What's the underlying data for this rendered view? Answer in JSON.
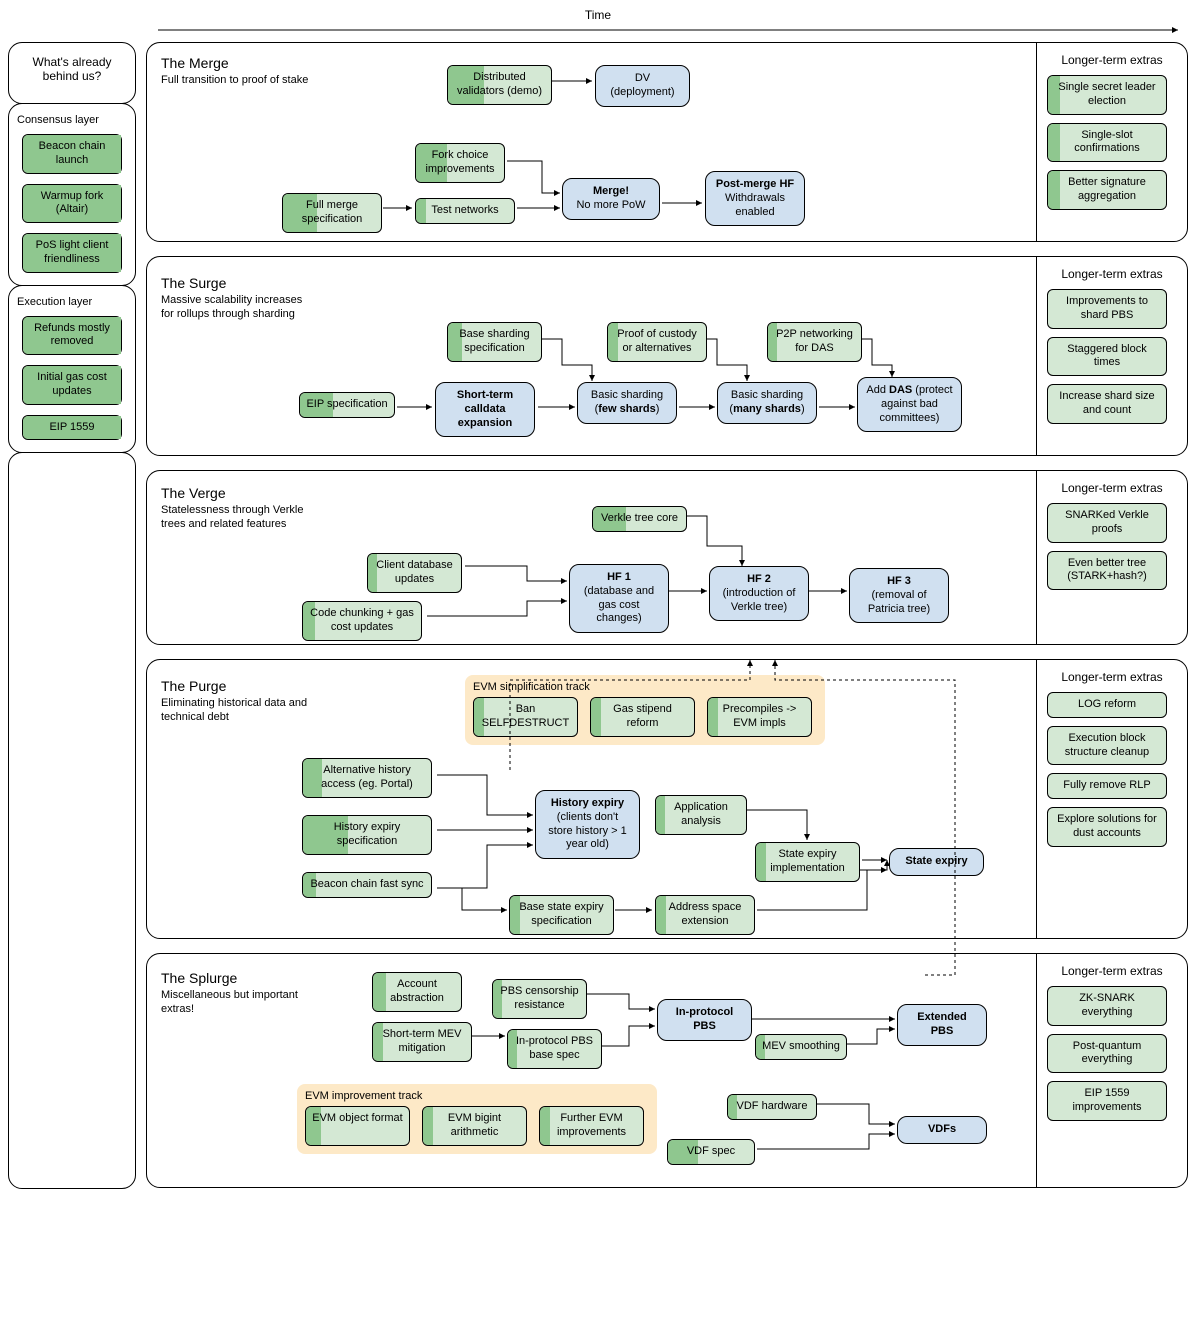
{
  "colors": {
    "green_fill": "#d4e8d4",
    "green_dark": "#8fc78f",
    "blue_fill": "#d0e0f0",
    "yellow_fill": "#fde9c7",
    "border": "#000000",
    "bg": "#ffffff"
  },
  "time_label": "Time",
  "left": {
    "title": "What's already behind us?",
    "consensus_label": "Consensus layer",
    "execution_label": "Execution layer",
    "consensus_items": [
      {
        "label": "Beacon chain launch",
        "progress": 1.0
      },
      {
        "label": "Warmup fork (Altair)",
        "progress": 1.0
      },
      {
        "label": "PoS light client friendliness",
        "progress": 1.0
      }
    ],
    "execution_items": [
      {
        "label": "Refunds mostly removed",
        "progress": 1.0
      },
      {
        "label": "Initial gas cost updates",
        "progress": 1.0
      },
      {
        "label": "EIP 1559",
        "progress": 1.0
      }
    ]
  },
  "merge": {
    "title": "The Merge",
    "sub": "Full transition to proof of stake",
    "nodes": {
      "dv_demo": {
        "label": "Distributed validators (demo)",
        "progress": 0.35
      },
      "dv_deploy": "DV (deployment)",
      "fork_choice": {
        "label": "Fork choice improvements",
        "progress": 0.35
      },
      "full_spec": {
        "label": "Full merge specification",
        "progress": 0.35
      },
      "test_net": {
        "label": "Test networks",
        "progress": 0.1
      },
      "merge_b": "<b>Merge!</b><br>No more PoW",
      "postmerge_b": "<b>Post-merge HF</b><br>Withdrawals enabled"
    },
    "extras_title": "Longer-term extras",
    "extras": [
      {
        "label": "Single secret leader election",
        "progress": 0.1
      },
      {
        "label": "Single-slot confirmations",
        "progress": 0.1
      },
      {
        "label": "Better signature aggregation",
        "progress": 0.1
      }
    ]
  },
  "surge": {
    "title": "The Surge",
    "sub": "Massive scalability increases for rollups through sharding",
    "nodes": {
      "eip_spec": {
        "label": "EIP specification",
        "progress": 0.35
      },
      "base_shard": {
        "label": "Base sharding specification",
        "progress": 0.15
      },
      "proof_custody": {
        "label": "Proof of custody or alternatives",
        "progress": 0.1
      },
      "p2p_das": {
        "label": "P2P networking for DAS",
        "progress": 0.1
      },
      "short_calldata": "<b>Short-term calldata expansion</b>",
      "few_shards": "Basic sharding (<b>few shards</b>)",
      "many_shards": "Basic sharding (<b>many shards</b>)",
      "add_das": "Add <b>DAS</b> (protect against bad committees)"
    },
    "extras_title": "Longer-term extras",
    "extras": [
      {
        "label": "Improvements to shard PBS",
        "progress": 0.0
      },
      {
        "label": "Staggered block times",
        "progress": 0.0
      },
      {
        "label": "Increase shard size and count",
        "progress": 0.0
      }
    ]
  },
  "verge": {
    "title": "The Verge",
    "sub": "Statelessness through Verkle trees and related features",
    "nodes": {
      "client_db": {
        "label": "Client database updates",
        "progress": 0.1
      },
      "code_chunk": {
        "label": "Code chunking + gas cost updates",
        "progress": 0.1
      },
      "verkle_core": {
        "label": "Verkle tree core",
        "progress": 0.35
      },
      "hf1": "<b>HF 1</b><br>(database and gas cost changes)",
      "hf2": "<b>HF 2</b><br>(introduction of Verkle tree)",
      "hf3": "<b>HF 3</b><br>(removal of Patricia tree)"
    },
    "extras_title": "Longer-term extras",
    "extras": [
      {
        "label": "SNARKed Verkle proofs",
        "progress": 0.0
      },
      {
        "label": "Even better tree (STARK+hash?)",
        "progress": 0.0
      }
    ]
  },
  "purge": {
    "title": "The Purge",
    "sub": "Eliminating historical data and technical debt",
    "evm_track_title": "EVM simplification track",
    "evm_track": [
      {
        "label": "Ban SELFDESTRUCT",
        "progress": 0.1
      },
      {
        "label": "Gas stipend reform",
        "progress": 0.1
      },
      {
        "label": "Precompiles -> EVM impls",
        "progress": 0.1
      }
    ],
    "nodes": {
      "alt_history": {
        "label": "Alternative history access (eg. Portal)",
        "progress": 0.15
      },
      "hist_expiry_spec": {
        "label": "History expiry specification",
        "progress": 0.35
      },
      "beacon_fast": {
        "label": "Beacon chain fast sync",
        "progress": 0.1
      },
      "base_state_spec": {
        "label": "Base state expiry specification",
        "progress": 0.1
      },
      "app_analysis": {
        "label": "Application analysis",
        "progress": 0.1
      },
      "state_impl": {
        "label": "State expiry implementation",
        "progress": 0.1
      },
      "addr_ext": {
        "label": "Address space extension",
        "progress": 0.1
      },
      "hist_expiry_b": "<b>History expiry</b><br>(clients don't store history > 1 year old)",
      "state_expiry_b": "<b>State expiry</b>"
    },
    "extras_title": "Longer-term extras",
    "extras": [
      {
        "label": "LOG reform",
        "progress": 0.0
      },
      {
        "label": "Execution block structure cleanup",
        "progress": 0.0
      },
      {
        "label": "Fully remove RLP",
        "progress": 0.0
      },
      {
        "label": "Explore solutions for dust accounts",
        "progress": 0.0
      }
    ]
  },
  "splurge": {
    "title": "The Splurge",
    "sub": "Miscellaneous but important extras!",
    "evm_track_title": "EVM improvement track",
    "evm_track": [
      {
        "label": "EVM object format",
        "progress": 0.15
      },
      {
        "label": "EVM bigint arithmetic",
        "progress": 0.1
      },
      {
        "label": "Further EVM improvements",
        "progress": 0.1
      }
    ],
    "nodes": {
      "acct_abs": {
        "label": "Account abstraction",
        "progress": 0.15
      },
      "pbs_cens": {
        "label": "PBS censorship resistance",
        "progress": 0.1
      },
      "short_mev": {
        "label": "Short-term MEV mitigation",
        "progress": 0.1
      },
      "pbs_base": {
        "label": "In-protocol PBS base spec",
        "progress": 0.1
      },
      "mev_smooth": {
        "label": "MEV smoothing",
        "progress": 0.1
      },
      "vdf_hw": {
        "label": "VDF hardware",
        "progress": 0.1
      },
      "vdf_spec": {
        "label": "VDF spec",
        "progress": 0.35
      },
      "in_pbs": "<b>In-protocol PBS</b>",
      "ext_pbs": "<b>Extended PBS</b>",
      "vdfs": "<b>VDFs</b>"
    },
    "extras_title": "Longer-term extras",
    "extras": [
      {
        "label": "ZK-SNARK everything",
        "progress": 0.0
      },
      {
        "label": "Post-quantum everything",
        "progress": 0.0
      },
      {
        "label": "EIP 1559 improvements",
        "progress": 0.0
      }
    ]
  }
}
